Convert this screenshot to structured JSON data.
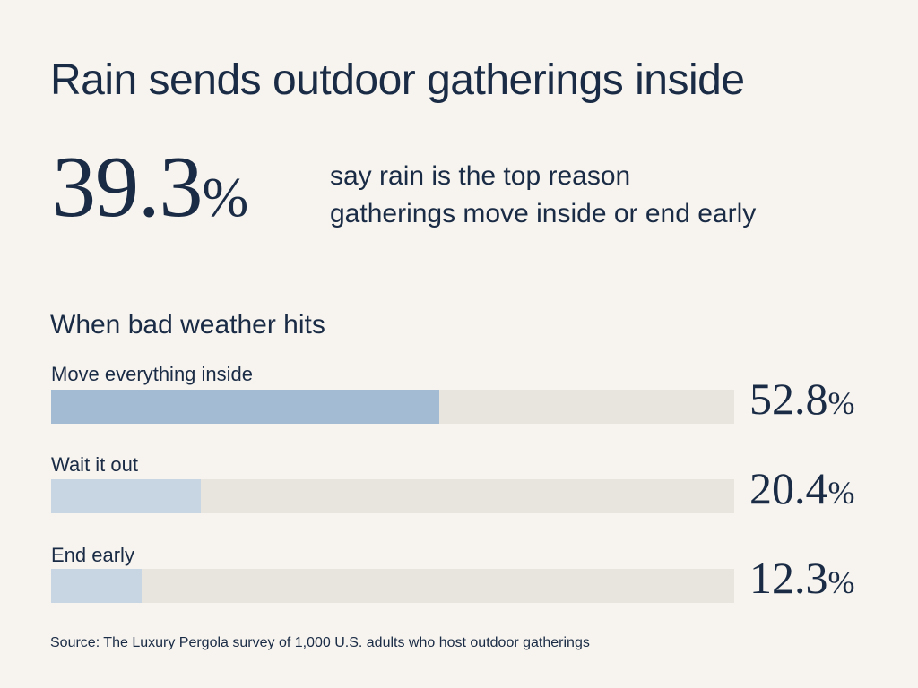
{
  "title": "Rain sends outdoor gatherings inside",
  "headline_stat": {
    "value": "39.3",
    "unit": "%",
    "caption_line1": "say rain is the top reason",
    "caption_line2": "gatherings move inside or end early"
  },
  "section_title": "When bad weather hits",
  "source": "Source: The Luxury Pergola survey of 1,000 U.S. adults who host outdoor gatherings",
  "colors": {
    "background": "#f7f4ef",
    "text": "#1a2b45",
    "track": "#e8e4de",
    "primary_bar": "#a3bcd4",
    "secondary_bar": "#c8d6e3"
  },
  "chart_data": {
    "type": "bar",
    "orientation": "horizontal",
    "title": "When bad weather hits",
    "categories": [
      "Move everything inside",
      "Wait it out",
      "End early"
    ],
    "values": [
      52.8,
      20.4,
      12.3
    ],
    "value_labels": [
      "52.8",
      "20.4",
      "12.3"
    ],
    "unit": "%",
    "xlim": [
      0,
      93
    ],
    "grid": false
  }
}
